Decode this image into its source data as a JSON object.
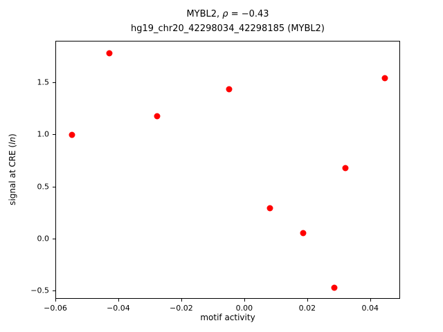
{
  "title": {
    "line1_prefix": "MYBL2, ",
    "line1_symbol": "ρ",
    "line1_suffix": " = −0.43",
    "line2": "hg19_chr20_42298034_42298185 (MYBL2)"
  },
  "axes": {
    "xlabel": "motif activity",
    "ylabel_prefix": "signal at CRE (",
    "ylabel_italic": "ln",
    "ylabel_suffix": ")"
  },
  "chart_data": {
    "type": "scatter",
    "title": "MYBL2, ρ = −0.43",
    "subtitle": "hg19_chr20_42298034_42298185 (MYBL2)",
    "xlabel": "motif activity",
    "ylabel": "signal at CRE (ln)",
    "marker": "circle",
    "marker_color": "#ff0000",
    "grid": false,
    "legend": null,
    "xlim": [
      -0.06,
      0.0495
    ],
    "ylim": [
      -0.583,
      1.903
    ],
    "x_ticks": [
      -0.06,
      -0.04,
      -0.02,
      0.0,
      0.02,
      0.04
    ],
    "x_tick_labels": [
      "−0.06",
      "−0.04",
      "−0.02",
      "0.00",
      "0.02",
      "0.04"
    ],
    "y_ticks": [
      -0.5,
      0.0,
      0.5,
      1.0,
      1.5
    ],
    "y_tick_labels": [
      "−0.5",
      "0.0",
      "0.5",
      "1.0",
      "1.5"
    ],
    "points": [
      {
        "x": -0.055,
        "y": 1.0
      },
      {
        "x": -0.043,
        "y": 1.79
      },
      {
        "x": -0.028,
        "y": 1.18
      },
      {
        "x": -0.005,
        "y": 1.44
      },
      {
        "x": 0.008,
        "y": 0.3
      },
      {
        "x": 0.0185,
        "y": 0.06
      },
      {
        "x": 0.0285,
        "y": -0.47
      },
      {
        "x": 0.032,
        "y": 0.68
      },
      {
        "x": 0.0445,
        "y": 1.55
      }
    ]
  }
}
